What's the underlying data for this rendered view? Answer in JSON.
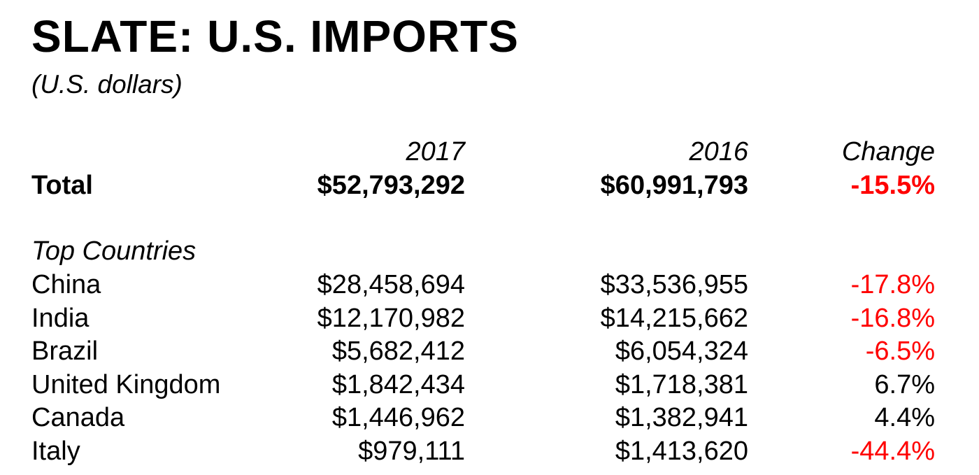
{
  "chart_data": {
    "type": "table",
    "title": "SLATE: U.S. IMPORTS",
    "subtitle": "(U.S. dollars)",
    "columns": [
      "2017",
      "2016",
      "Change"
    ],
    "total": {
      "label": "Total",
      "2017": "$52,793,292",
      "2016": "$60,991,793",
      "change": "-15.5%"
    },
    "section_label": "Top Countries",
    "rows": [
      {
        "country": "China",
        "2017": "$28,458,694",
        "2016": "$33,536,955",
        "change": "-17.8%"
      },
      {
        "country": "India",
        "2017": "$12,170,982",
        "2016": "$14,215,662",
        "change": "-16.8%"
      },
      {
        "country": "Brazil",
        "2017": "$5,682,412",
        "2016": "$6,054,324",
        "change": "-6.5%"
      },
      {
        "country": "United Kingdom",
        "2017": "$1,842,434",
        "2016": "$1,718,381",
        "change": "6.7%"
      },
      {
        "country": "Canada",
        "2017": "$1,446,962",
        "2016": "$1,382,941",
        "change": "4.4%"
      },
      {
        "country": "Italy",
        "2017": "$979,111",
        "2016": "$1,413,620",
        "change": "-44.4%"
      }
    ]
  },
  "colors": {
    "negative": "#ff0000",
    "positive": "#000000",
    "text": "#000000",
    "background": "#ffffff"
  }
}
